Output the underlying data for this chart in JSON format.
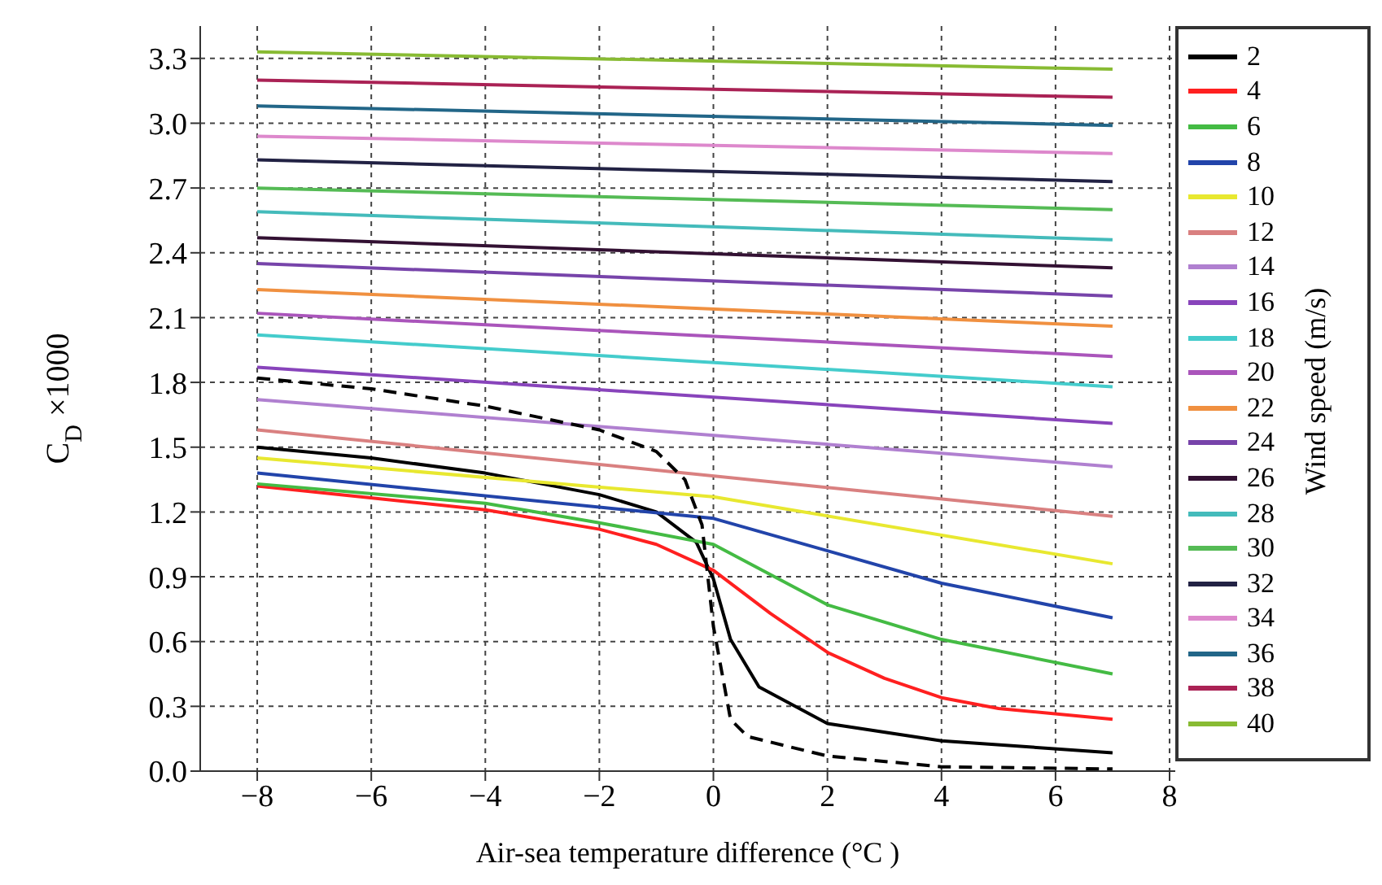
{
  "chart_data": {
    "type": "line",
    "xlabel": "Air-sea temperature difference (°C )",
    "ylabel": "C$_{D}$ ×1000",
    "legend_title": "Wind speed (m/s)",
    "legend": "right",
    "grid": true,
    "line_style": "solid",
    "marker": "none",
    "xlim": [
      -9,
      8.1
    ],
    "ylim": [
      0,
      3.45
    ],
    "xticks": [
      {
        "value": -8,
        "label": "−8"
      },
      {
        "value": -6,
        "label": "−6"
      },
      {
        "value": -4,
        "label": "−4"
      },
      {
        "value": -2,
        "label": "−2"
      },
      0,
      2,
      4,
      6,
      8
    ],
    "yticks": [
      {
        "value": 0,
        "label": "0.0"
      },
      {
        "value": 0.3,
        "label": "0.3"
      },
      {
        "value": 0.6,
        "label": "0.6"
      },
      {
        "value": 0.9,
        "label": "0.9"
      },
      {
        "value": 1.2,
        "label": "1.2"
      },
      {
        "value": 1.5,
        "label": "1.5"
      },
      {
        "value": 1.8,
        "label": "1.8"
      },
      {
        "value": 2.1,
        "label": "2.1"
      },
      {
        "value": 2.4,
        "label": "2.4"
      },
      {
        "value": 2.7,
        "label": "2.7"
      },
      {
        "value": 3.0,
        "label": "3.0"
      },
      {
        "value": 3.3,
        "label": "3.3"
      }
    ],
    "series": [
      {
        "name": "2",
        "color": "#000000",
        "x": [
          -8,
          -6,
          -4,
          -2,
          -1,
          -0.3,
          0,
          0.3,
          0.8,
          2,
          4,
          7
        ],
        "values": [
          1.5,
          1.45,
          1.38,
          1.28,
          1.2,
          1.06,
          0.89,
          0.61,
          0.39,
          0.22,
          0.14,
          0.085
        ]
      },
      {
        "name": "4",
        "color": "#ff2020",
        "x": [
          -8,
          -4,
          -2,
          -1,
          0,
          1,
          2,
          3,
          4,
          5,
          7
        ],
        "values": [
          1.32,
          1.21,
          1.12,
          1.05,
          0.93,
          0.73,
          0.55,
          0.43,
          0.34,
          0.29,
          0.24
        ]
      },
      {
        "name": "6",
        "color": "#44bb44",
        "x": [
          -8,
          -4,
          -2,
          0,
          2,
          4,
          7
        ],
        "values": [
          1.33,
          1.24,
          1.15,
          1.05,
          0.77,
          0.61,
          0.45
        ]
      },
      {
        "name": "8",
        "color": "#2244aa",
        "x": [
          -8,
          0,
          2,
          4,
          7
        ],
        "values": [
          1.38,
          1.17,
          1.02,
          0.87,
          0.71
        ]
      },
      {
        "name": "10",
        "color": "#e8e830",
        "x": [
          -8,
          0,
          7
        ],
        "values": [
          1.45,
          1.27,
          0.96
        ]
      },
      {
        "name": "12",
        "color": "#d98080",
        "x": [
          -8,
          7
        ],
        "values": [
          1.58,
          1.18
        ]
      },
      {
        "name": "14",
        "color": "#b080d0",
        "x": [
          -8,
          7
        ],
        "values": [
          1.72,
          1.41
        ]
      },
      {
        "name": "16",
        "color": "#8844bb",
        "x": [
          -8,
          7
        ],
        "values": [
          1.87,
          1.61
        ]
      },
      {
        "name": "18",
        "color": "#44cccc",
        "x": [
          -8,
          7
        ],
        "values": [
          2.02,
          1.78
        ]
      },
      {
        "name": "20",
        "color": "#aa55bb",
        "x": [
          -8,
          7
        ],
        "values": [
          2.12,
          1.92
        ]
      },
      {
        "name": "22",
        "color": "#f09040",
        "x": [
          -8,
          7
        ],
        "values": [
          2.23,
          2.06
        ]
      },
      {
        "name": "24",
        "color": "#7744aa",
        "x": [
          -8,
          7
        ],
        "values": [
          2.35,
          2.2
        ]
      },
      {
        "name": "26",
        "color": "#331133",
        "x": [
          -8,
          7
        ],
        "values": [
          2.47,
          2.33
        ]
      },
      {
        "name": "28",
        "color": "#44bbbb",
        "x": [
          -8,
          7
        ],
        "values": [
          2.59,
          2.46
        ]
      },
      {
        "name": "30",
        "color": "#55bb55",
        "x": [
          -8,
          7
        ],
        "values": [
          2.7,
          2.6
        ]
      },
      {
        "name": "32",
        "color": "#222244",
        "x": [
          -8,
          7
        ],
        "values": [
          2.83,
          2.73
        ]
      },
      {
        "name": "34",
        "color": "#dd88cc",
        "x": [
          -8,
          7
        ],
        "values": [
          2.94,
          2.86
        ]
      },
      {
        "name": "36",
        "color": "#226688",
        "x": [
          -8,
          7
        ],
        "values": [
          3.08,
          2.99
        ]
      },
      {
        "name": "38",
        "color": "#aa2255",
        "x": [
          -8,
          7
        ],
        "values": [
          3.2,
          3.12
        ]
      },
      {
        "name": "40",
        "color": "#88bb33",
        "x": [
          -8,
          7
        ],
        "values": [
          3.33,
          3.25
        ]
      },
      {
        "color": "#000000",
        "line_style": "dashed",
        "x": [
          -8,
          -6,
          -4,
          -2,
          -1,
          -0.5,
          -0.2,
          0,
          0.3,
          0.6,
          2,
          4,
          7
        ],
        "values": [
          1.82,
          1.77,
          1.69,
          1.58,
          1.48,
          1.35,
          1.14,
          0.67,
          0.24,
          0.16,
          0.07,
          0.02,
          0.01
        ]
      }
    ]
  }
}
